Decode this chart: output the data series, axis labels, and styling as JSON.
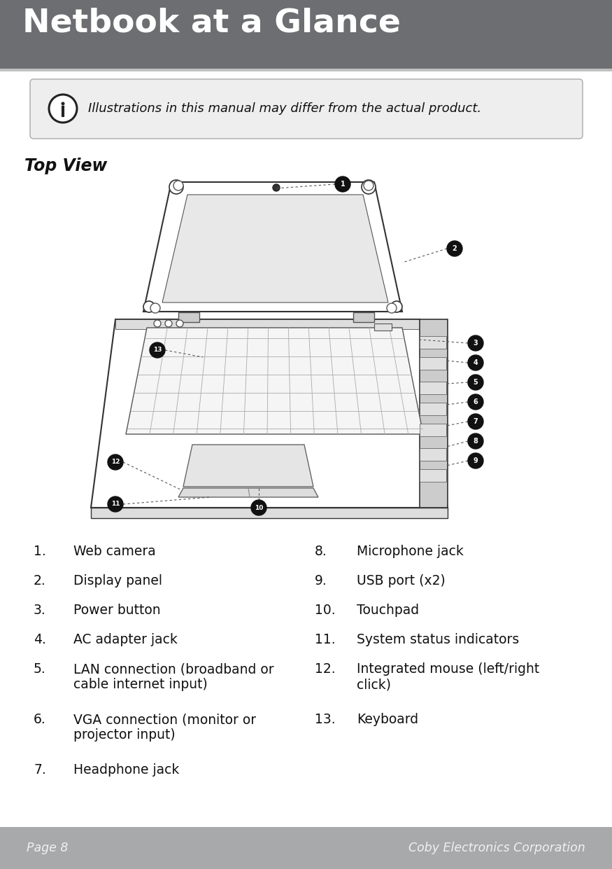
{
  "title": "Netbook at a Glance",
  "title_bg": "#6d6e71",
  "title_color": "#ffffff",
  "page_bg": "#ffffff",
  "footer_bg": "#a8a9ab",
  "footer_left": "Page 8",
  "footer_right": "Coby Electronics Corporation",
  "footer_text_color": "#f0f0f0",
  "info_text": "Illustrations in this manual may differ from the actual product.",
  "section_title": "Top View",
  "callout_fill": "#111111",
  "callout_text": "#ffffff",
  "dotted_line_color": "#555555",
  "left_items": [
    [
      "1.",
      "Web camera"
    ],
    [
      "2.",
      "Display panel"
    ],
    [
      "3.",
      "Power button"
    ],
    [
      "4.",
      "AC adapter jack"
    ],
    [
      "5.",
      "LAN connection (broadband or\ncable internet input)"
    ],
    [
      "6.",
      "VGA connection (monitor or\nprojector input)"
    ],
    [
      "7.",
      "Headphone jack"
    ]
  ],
  "right_items": [
    [
      "8.",
      "Microphone jack"
    ],
    [
      "9.",
      "USB port (x2)"
    ],
    [
      "10.",
      "Touchpad"
    ],
    [
      "11.",
      "System status indicators"
    ],
    [
      "12.",
      "Integrated mouse (left/right\nclick)"
    ],
    [
      "13.",
      "Keyboard"
    ]
  ]
}
